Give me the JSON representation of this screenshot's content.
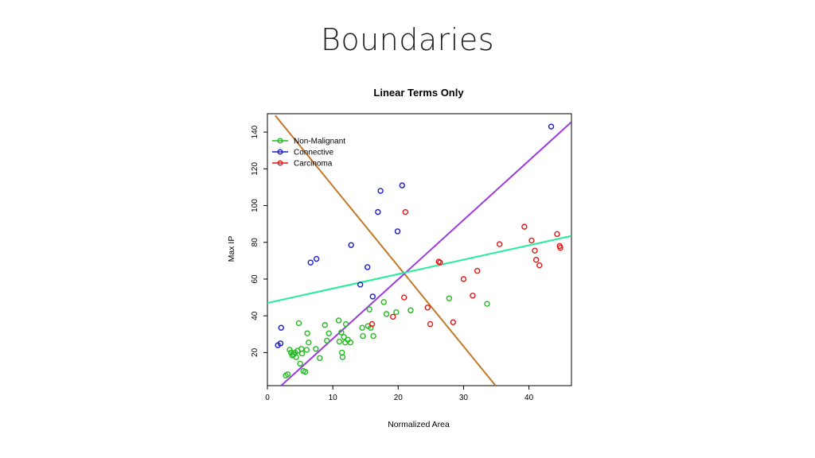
{
  "slide": {
    "title": "Boundaries"
  },
  "chart_data": {
    "type": "scatter",
    "title": "Linear Terms Only",
    "xlabel": "Normalized Area",
    "ylabel": "Max IP",
    "xlim": [
      0,
      46.5
    ],
    "ylim": [
      2,
      150
    ],
    "xticks": [
      0,
      10,
      20,
      30,
      40
    ],
    "yticks": [
      20,
      40,
      60,
      80,
      100,
      120,
      140
    ],
    "legend_position": "top-left",
    "series": [
      {
        "name": "Non-Malignant",
        "color": "#22bb22",
        "points": [
          [
            2.8,
            7.5
          ],
          [
            3.1,
            8.2
          ],
          [
            3.4,
            21.5
          ],
          [
            3.6,
            20.0
          ],
          [
            3.8,
            18.5
          ],
          [
            4.0,
            19.0
          ],
          [
            4.2,
            20.0
          ],
          [
            4.4,
            17.5
          ],
          [
            4.6,
            21.0
          ],
          [
            4.8,
            36.0
          ],
          [
            5.0,
            14.0
          ],
          [
            5.2,
            22.0
          ],
          [
            5.3,
            19.5
          ],
          [
            5.5,
            10.0
          ],
          [
            5.8,
            9.5
          ],
          [
            6.0,
            21.5
          ],
          [
            6.1,
            30.5
          ],
          [
            6.3,
            25.5
          ],
          [
            7.4,
            22.0
          ],
          [
            8.0,
            17.0
          ],
          [
            8.8,
            35.0
          ],
          [
            9.1,
            26.5
          ],
          [
            9.4,
            30.5
          ],
          [
            10.9,
            37.5
          ],
          [
            11.0,
            26.0
          ],
          [
            11.3,
            31.0
          ],
          [
            11.5,
            17.5
          ],
          [
            11.4,
            20.0
          ],
          [
            11.7,
            28.5
          ],
          [
            11.9,
            25.5
          ],
          [
            12.0,
            35.5
          ],
          [
            12.3,
            27.0
          ],
          [
            12.7,
            25.5
          ],
          [
            14.5,
            33.5
          ],
          [
            14.6,
            29.0
          ],
          [
            15.4,
            34.5
          ],
          [
            15.6,
            43.5
          ],
          [
            15.8,
            33.5
          ],
          [
            16.2,
            29.0
          ],
          [
            17.8,
            47.5
          ],
          [
            18.2,
            41.0
          ],
          [
            19.7,
            42.0
          ],
          [
            21.9,
            43.0
          ],
          [
            27.8,
            49.5
          ],
          [
            33.6,
            46.5
          ]
        ]
      },
      {
        "name": "Connective",
        "color": "#1c1ccc",
        "points": [
          [
            1.6,
            24.0
          ],
          [
            2.0,
            25.0
          ],
          [
            2.1,
            33.5
          ],
          [
            6.6,
            69.0
          ],
          [
            7.5,
            71.0
          ],
          [
            12.8,
            78.5
          ],
          [
            14.2,
            57.0
          ],
          [
            15.3,
            66.5
          ],
          [
            16.1,
            50.5
          ],
          [
            16.9,
            96.5
          ],
          [
            17.3,
            108.0
          ],
          [
            19.9,
            86.0
          ],
          [
            20.6,
            111.0
          ],
          [
            43.4,
            143.0
          ]
        ]
      },
      {
        "name": "Carcinoma",
        "color": "#e01818",
        "points": [
          [
            16.0,
            35.5
          ],
          [
            19.2,
            39.5
          ],
          [
            20.9,
            50.0
          ],
          [
            21.1,
            96.5
          ],
          [
            24.5,
            44.5
          ],
          [
            24.9,
            35.5
          ],
          [
            26.2,
            69.5
          ],
          [
            26.4,
            69.0
          ],
          [
            28.4,
            36.5
          ],
          [
            30.0,
            60.0
          ],
          [
            31.4,
            51.0
          ],
          [
            32.1,
            64.5
          ],
          [
            35.5,
            79.0
          ],
          [
            39.3,
            88.5
          ],
          [
            40.4,
            81.0
          ],
          [
            40.9,
            75.5
          ],
          [
            41.1,
            70.5
          ],
          [
            41.6,
            67.5
          ],
          [
            44.3,
            84.5
          ],
          [
            44.7,
            78.0
          ],
          [
            44.8,
            77.0
          ]
        ]
      }
    ],
    "boundaries": [
      {
        "color": "#c07a2a",
        "points": [
          [
            1.2,
            149
          ],
          [
            34.9,
            2
          ]
        ]
      },
      {
        "color": "#9b3be0",
        "points": [
          [
            2.1,
            2
          ],
          [
            46.5,
            145.5
          ]
        ]
      },
      {
        "color": "#22ee99",
        "points": [
          [
            0,
            47.0
          ],
          [
            46.5,
            83.5
          ]
        ]
      }
    ]
  }
}
